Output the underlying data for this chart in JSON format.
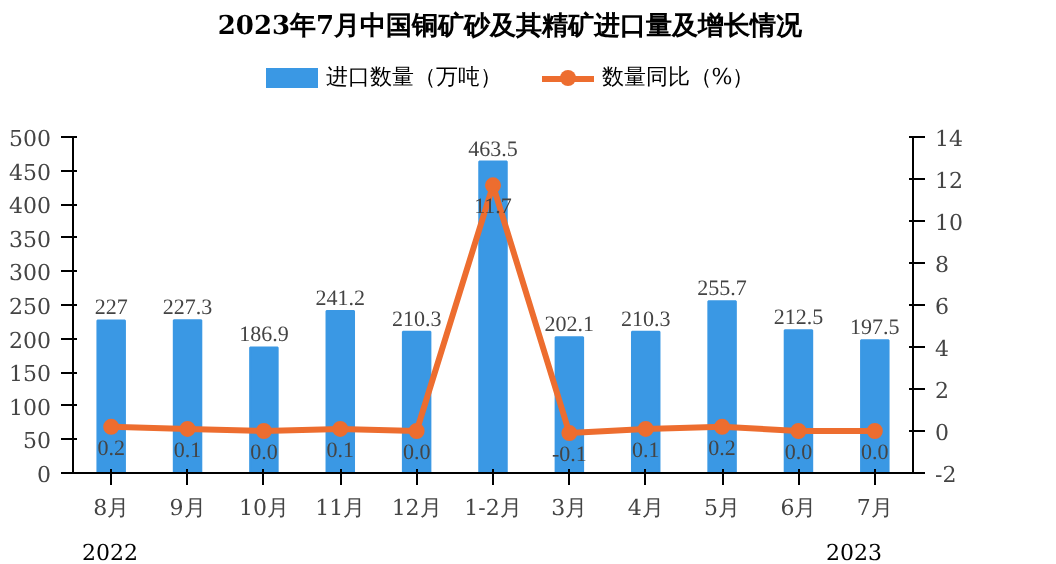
{
  "chart_data": {
    "type": "bar",
    "title": "2023年7月中国铜矿砂及其精矿进口量及增长情况",
    "categories": [
      "8月",
      "9月",
      "10月",
      "11月",
      "12月",
      "1-2月",
      "3月",
      "4月",
      "5月",
      "6月",
      "7月"
    ],
    "series": [
      {
        "name": "进口数量（万吨）",
        "color": "#3a98e4",
        "values": [
          227,
          227.3,
          186.9,
          241.2,
          210.3,
          463.5,
          202.1,
          210.3,
          255.7,
          212.5,
          197.5
        ],
        "value_labels": [
          "227",
          "227.3",
          "186.9",
          "241.2",
          "210.3",
          "463.5",
          "202.1",
          "210.3",
          "255.7",
          "212.5",
          "197.5"
        ]
      },
      {
        "name": "数量同比（%）",
        "type": "line",
        "axis": "y2",
        "color": "#ed6d2f",
        "marker": "circle",
        "values": [
          0.2,
          0.1,
          0.0,
          0.1,
          0.0,
          11.7,
          -0.1,
          0.1,
          0.2,
          0.0,
          0.0
        ],
        "value_labels": [
          "0.2",
          "0.1",
          "0.0",
          "0.1",
          "0.0",
          "11.7",
          "-0.1",
          "0.1",
          "0.2",
          "0.0",
          "0.0"
        ]
      }
    ],
    "ylim": [
      0,
      500
    ],
    "yticks": [
      0,
      50,
      100,
      150,
      200,
      250,
      300,
      350,
      400,
      450,
      500
    ],
    "y2lim": [
      -2,
      14
    ],
    "y2ticks": [
      -2,
      0,
      2,
      4,
      6,
      8,
      10,
      12,
      14
    ],
    "annotations": [
      "2022",
      "2023"
    ],
    "grid": false,
    "legend": "top"
  }
}
